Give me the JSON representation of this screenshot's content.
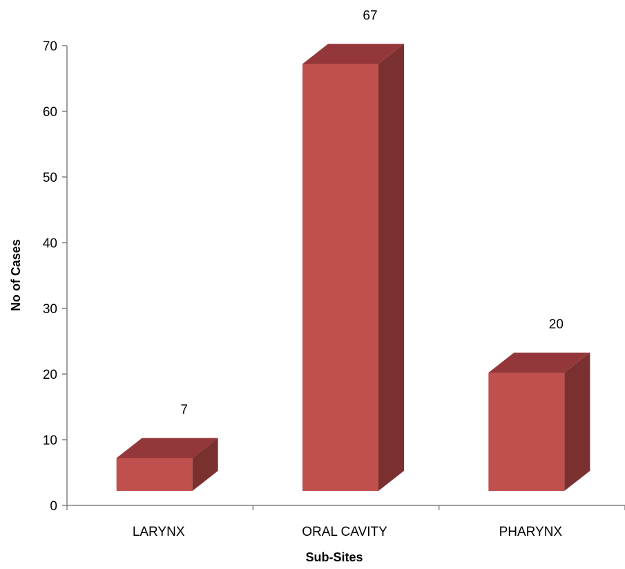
{
  "chart_data": {
    "type": "bar",
    "categories": [
      "LARYNX",
      "ORAL CAVITY",
      "PHARYNX"
    ],
    "values": [
      7,
      67,
      20
    ],
    "xlabel": "Sub-Sites",
    "ylabel": "No of Cases",
    "ylim": [
      0,
      70
    ],
    "yticks": [
      0,
      10,
      20,
      30,
      40,
      50,
      60,
      70
    ],
    "grid": false,
    "style": "3d",
    "colors": {
      "front": "#C0504D",
      "top": "#93373A",
      "side": "#7B3030",
      "axis": "#808080"
    }
  }
}
